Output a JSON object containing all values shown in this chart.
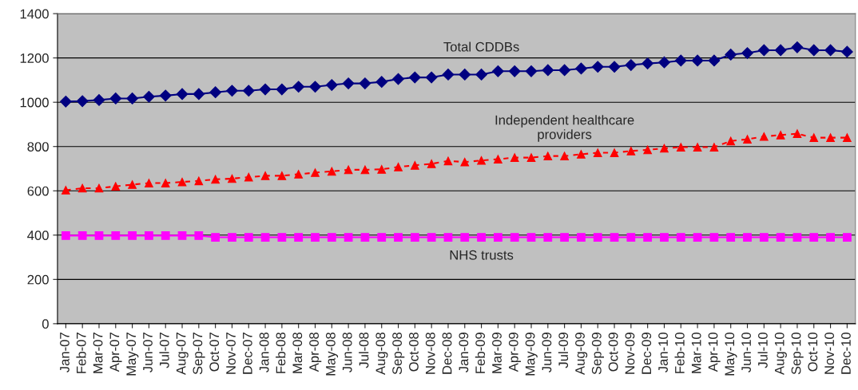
{
  "chart_data": {
    "type": "line",
    "categories": [
      "Jan-07",
      "Feb-07",
      "Mar-07",
      "Apr-07",
      "May-07",
      "Jun-07",
      "Jul-07",
      "Aug-07",
      "Sep-07",
      "Oct-07",
      "Nov-07",
      "Dec-07",
      "Jan-08",
      "Feb-08",
      "Mar-08",
      "Apr-08",
      "May-08",
      "Jun-08",
      "Jul-08",
      "Aug-08",
      "Sep-08",
      "Oct-08",
      "Nov-08",
      "Dec-08",
      "Jan-09",
      "Feb-09",
      "Mar-09",
      "Apr-09",
      "May-09",
      "Jun-09",
      "Jul-09",
      "Aug-09",
      "Sep-09",
      "Oct-09",
      "Nov-09",
      "Dec-09",
      "Jan-10",
      "Feb-10",
      "Mar-10",
      "Apr-10",
      "May-10",
      "Jun-10",
      "Jul-10",
      "Aug-10",
      "Sep-10",
      "Oct-10",
      "Nov-10",
      "Dec-10"
    ],
    "series": [
      {
        "name": "Total CDDBs",
        "color": "#000080",
        "marker": "diamond",
        "line_style": "solid",
        "values": [
          1003,
          1005,
          1010,
          1017,
          1017,
          1025,
          1030,
          1037,
          1037,
          1045,
          1052,
          1052,
          1058,
          1058,
          1070,
          1070,
          1078,
          1085,
          1085,
          1092,
          1105,
          1112,
          1112,
          1125,
          1125,
          1125,
          1140,
          1140,
          1140,
          1145,
          1145,
          1152,
          1160,
          1160,
          1168,
          1175,
          1180,
          1188,
          1188,
          1188,
          1215,
          1222,
          1235,
          1235,
          1248,
          1235,
          1235,
          1228
        ]
      },
      {
        "name": "Independent healthcare\nproviders",
        "color": "#ff0000",
        "marker": "triangle",
        "line_style": "dashed",
        "values": [
          603,
          612,
          612,
          620,
          628,
          635,
          635,
          640,
          645,
          652,
          655,
          662,
          668,
          668,
          675,
          682,
          688,
          695,
          695,
          697,
          708,
          715,
          722,
          735,
          730,
          737,
          743,
          750,
          750,
          757,
          757,
          765,
          772,
          772,
          780,
          785,
          792,
          797,
          797,
          797,
          825,
          833,
          845,
          852,
          858,
          840,
          840,
          840
        ]
      },
      {
        "name": "NHS trusts",
        "color": "#ff00ff",
        "marker": "square",
        "line_style": "solid",
        "values": [
          398,
          398,
          398,
          398,
          398,
          398,
          398,
          398,
          398,
          390,
          390,
          390,
          390,
          390,
          390,
          390,
          390,
          390,
          390,
          390,
          390,
          390,
          390,
          390,
          390,
          390,
          390,
          390,
          390,
          390,
          390,
          390,
          390,
          390,
          390,
          390,
          390,
          390,
          390,
          390,
          390,
          390,
          390,
          390,
          390,
          390,
          390,
          390
        ]
      }
    ],
    "ylim": [
      0,
      1400
    ],
    "yticks": [
      0,
      200,
      400,
      600,
      800,
      1000,
      1200,
      1400
    ],
    "grid": "y",
    "legend": false
  }
}
